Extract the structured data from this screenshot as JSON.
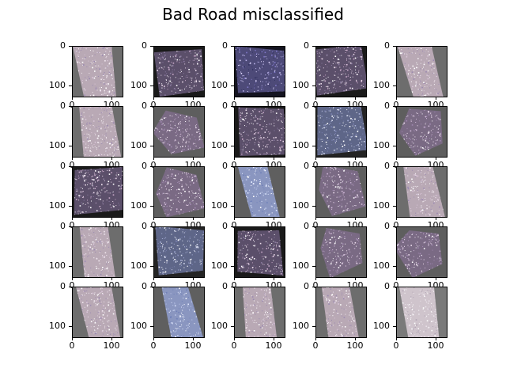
{
  "figure": {
    "title": "Bad Road misclassified"
  },
  "chart_data": {
    "type": "image-grid",
    "title": "Bad Road misclassified",
    "rows": 5,
    "cols": 5,
    "image_extent": [
      0,
      128
    ],
    "x_ticks": [
      "0",
      "100"
    ],
    "y_ticks": [
      "0",
      "100"
    ],
    "x_tick_values": [
      0,
      100
    ],
    "y_tick_values": [
      0,
      100
    ],
    "panels": [
      {
        "style": "pale-strip"
      },
      {
        "style": "dark-textured"
      },
      {
        "style": "dark-blue"
      },
      {
        "style": "dark-textured"
      },
      {
        "style": "pale-strip"
      },
      {
        "style": "pale-strip"
      },
      {
        "style": "speckled"
      },
      {
        "style": "dark-textured"
      },
      {
        "style": "blue-gray"
      },
      {
        "style": "speckled"
      },
      {
        "style": "dark-textured"
      },
      {
        "style": "speckled"
      },
      {
        "style": "blue-strip"
      },
      {
        "style": "speckled"
      },
      {
        "style": "pale-strip"
      },
      {
        "style": "pale-strip"
      },
      {
        "style": "blue-gray"
      },
      {
        "style": "dark-textured"
      },
      {
        "style": "speckled"
      },
      {
        "style": "speckled"
      },
      {
        "style": "pale-strip"
      },
      {
        "style": "blue-strip"
      },
      {
        "style": "pale-strip"
      },
      {
        "style": "pale-strip"
      },
      {
        "style": "glossy"
      }
    ]
  }
}
